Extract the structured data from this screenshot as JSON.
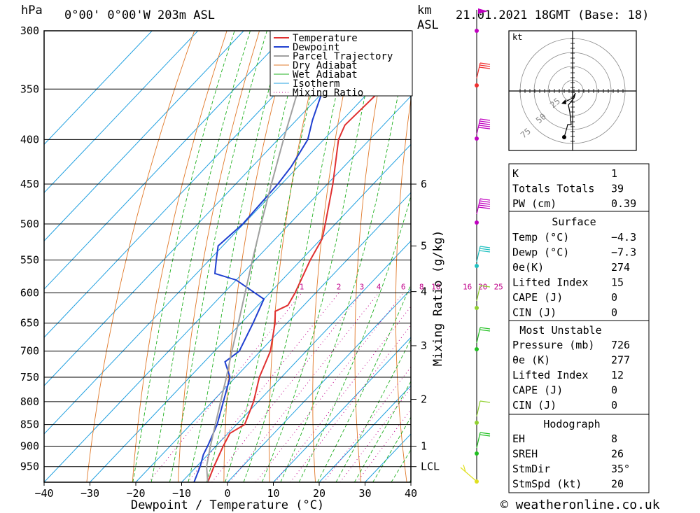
{
  "header": {
    "pressure_unit": "hPa",
    "location": "0°00' 0°00'W 203m ASL",
    "km_label": "km",
    "asl_label": "ASL",
    "datetime": "21.01.2021 18GMT (Base: 18)"
  },
  "chart_data": {
    "type": "line",
    "xlabel": "Dewpoint / Temperature (°C)",
    "ylabel": "hPa",
    "right_label": "Mixing Ratio (g/kg)",
    "xlim": [
      -40,
      40
    ],
    "x_ticks": [
      -40,
      -30,
      -20,
      -10,
      0,
      10,
      20,
      30,
      40
    ],
    "pressure_levels": [
      300,
      350,
      400,
      450,
      500,
      550,
      600,
      650,
      700,
      750,
      800,
      850,
      900,
      950
    ],
    "km_ticks": [
      {
        "label": "1",
        "p": 900
      },
      {
        "label": "2",
        "p": 795
      },
      {
        "label": "3",
        "p": 690
      },
      {
        "label": "4",
        "p": 598
      },
      {
        "label": "5",
        "p": 530
      },
      {
        "label": "6",
        "p": 450
      },
      {
        "label": "LCL",
        "p": 950
      }
    ],
    "mixing_ratio_labels": [
      "1",
      "2",
      "3",
      "4",
      "6",
      "8",
      "10",
      "16",
      "20",
      "25"
    ],
    "mixing_ratio_values": [
      1,
      2,
      3,
      4,
      6,
      8,
      10,
      16,
      20,
      25
    ],
    "legend": [
      "Temperature",
      "Dewpoint",
      "Parcel Trajectory",
      "Dry Adiabat",
      "Wet Adiabat",
      "Isotherm",
      "Mixing Ratio"
    ],
    "colors": {
      "temperature": "#e03030",
      "dewpoint": "#2040d0",
      "parcel": "#a0a0a0",
      "dry_adiabat": "#e07828",
      "wet_adiabat": "#20b020",
      "isotherm": "#20a0e0",
      "mixing_ratio": "#c0008a"
    },
    "series": [
      {
        "name": "Temperature",
        "points": [
          {
            "p": 990,
            "t": -4.3
          },
          {
            "p": 950,
            "t": -6.2
          },
          {
            "p": 900,
            "t": -8.4
          },
          {
            "p": 870,
            "t": -9.6
          },
          {
            "p": 850,
            "t": -8.2
          },
          {
            "p": 800,
            "t": -11.0
          },
          {
            "p": 750,
            "t": -14.8
          },
          {
            "p": 700,
            "t": -17.8
          },
          {
            "p": 650,
            "t": -22.6
          },
          {
            "p": 630,
            "t": -25.0
          },
          {
            "p": 620,
            "t": -23.5
          },
          {
            "p": 600,
            "t": -24.5
          },
          {
            "p": 550,
            "t": -28.0
          },
          {
            "p": 520,
            "t": -29.8
          },
          {
            "p": 500,
            "t": -32.2
          },
          {
            "p": 450,
            "t": -38.8
          },
          {
            "p": 400,
            "t": -46.8
          },
          {
            "p": 385,
            "t": -48.4
          },
          {
            "p": 350,
            "t": -47.8
          },
          {
            "p": 300,
            "t": -50.0
          }
        ]
      },
      {
        "name": "Dewpoint",
        "points": [
          {
            "p": 990,
            "t": -7.3
          },
          {
            "p": 950,
            "t": -9.2
          },
          {
            "p": 920,
            "t": -11.0
          },
          {
            "p": 900,
            "t": -11.8
          },
          {
            "p": 850,
            "t": -14.2
          },
          {
            "p": 800,
            "t": -17.6
          },
          {
            "p": 750,
            "t": -21.2
          },
          {
            "p": 720,
            "t": -25.5
          },
          {
            "p": 700,
            "t": -24.6
          },
          {
            "p": 650,
            "t": -27.4
          },
          {
            "p": 610,
            "t": -30.0
          },
          {
            "p": 580,
            "t": -40.0
          },
          {
            "p": 570,
            "t": -46.0
          },
          {
            "p": 550,
            "t": -48.5
          },
          {
            "p": 530,
            "t": -51.0
          },
          {
            "p": 500,
            "t": -50.2
          },
          {
            "p": 450,
            "t": -50.8
          },
          {
            "p": 430,
            "t": -51.5
          },
          {
            "p": 400,
            "t": -53.5
          },
          {
            "p": 380,
            "t": -56.5
          },
          {
            "p": 350,
            "t": -60.6
          },
          {
            "p": 300,
            "t": -68.2
          }
        ]
      },
      {
        "name": "Parcel Trajectory",
        "points": [
          {
            "p": 990,
            "t": -4.3
          },
          {
            "p": 950,
            "t": -7.8
          },
          {
            "p": 900,
            "t": -11.2
          },
          {
            "p": 850,
            "t": -14.6
          },
          {
            "p": 800,
            "t": -18.2
          },
          {
            "p": 750,
            "t": -22.0
          },
          {
            "p": 700,
            "t": -26.2
          },
          {
            "p": 650,
            "t": -30.6
          },
          {
            "p": 600,
            "t": -35.4
          },
          {
            "p": 550,
            "t": -40.6
          },
          {
            "p": 500,
            "t": -46.2
          },
          {
            "p": 450,
            "t": -52.2
          },
          {
            "p": 400,
            "t": -58.8
          },
          {
            "p": 350,
            "t": -66.0
          },
          {
            "p": 300,
            "t": -74.0
          }
        ]
      }
    ]
  },
  "hodograph": {
    "unit_label": "kt",
    "ring_labels": [
      "25",
      "50",
      "75"
    ]
  },
  "indices": {
    "rows": [
      {
        "label": "K",
        "value": "1"
      },
      {
        "label": "Totals Totals",
        "value": "39"
      },
      {
        "label": "PW (cm)",
        "value": "0.39"
      }
    ]
  },
  "surface": {
    "title": "Surface",
    "rows": [
      {
        "label": "Temp (°C)",
        "value": "-4.3"
      },
      {
        "label": "Dewp (°C)",
        "value": "-7.3"
      },
      {
        "label": "θe(K)",
        "value": "274"
      },
      {
        "label": "Lifted Index",
        "value": "15"
      },
      {
        "label": "CAPE (J)",
        "value": "0"
      },
      {
        "label": "CIN (J)",
        "value": "0"
      }
    ]
  },
  "most_unstable": {
    "title": "Most Unstable",
    "rows": [
      {
        "label": "Pressure (mb)",
        "value": "726"
      },
      {
        "label": "θe (K)",
        "value": "277"
      },
      {
        "label": "Lifted Index",
        "value": "12"
      },
      {
        "label": "CAPE (J)",
        "value": "0"
      },
      {
        "label": "CIN (J)",
        "value": "0"
      }
    ]
  },
  "hodograph_table": {
    "title": "Hodograph",
    "rows": [
      {
        "label": "EH",
        "value": "8"
      },
      {
        "label": "SREH",
        "value": "26"
      },
      {
        "label": "StmDir",
        "value": "35°"
      },
      {
        "label": "StmSpd (kt)",
        "value": "20"
      }
    ]
  },
  "footer": {
    "copyright": "© weatheronline.co.uk"
  }
}
